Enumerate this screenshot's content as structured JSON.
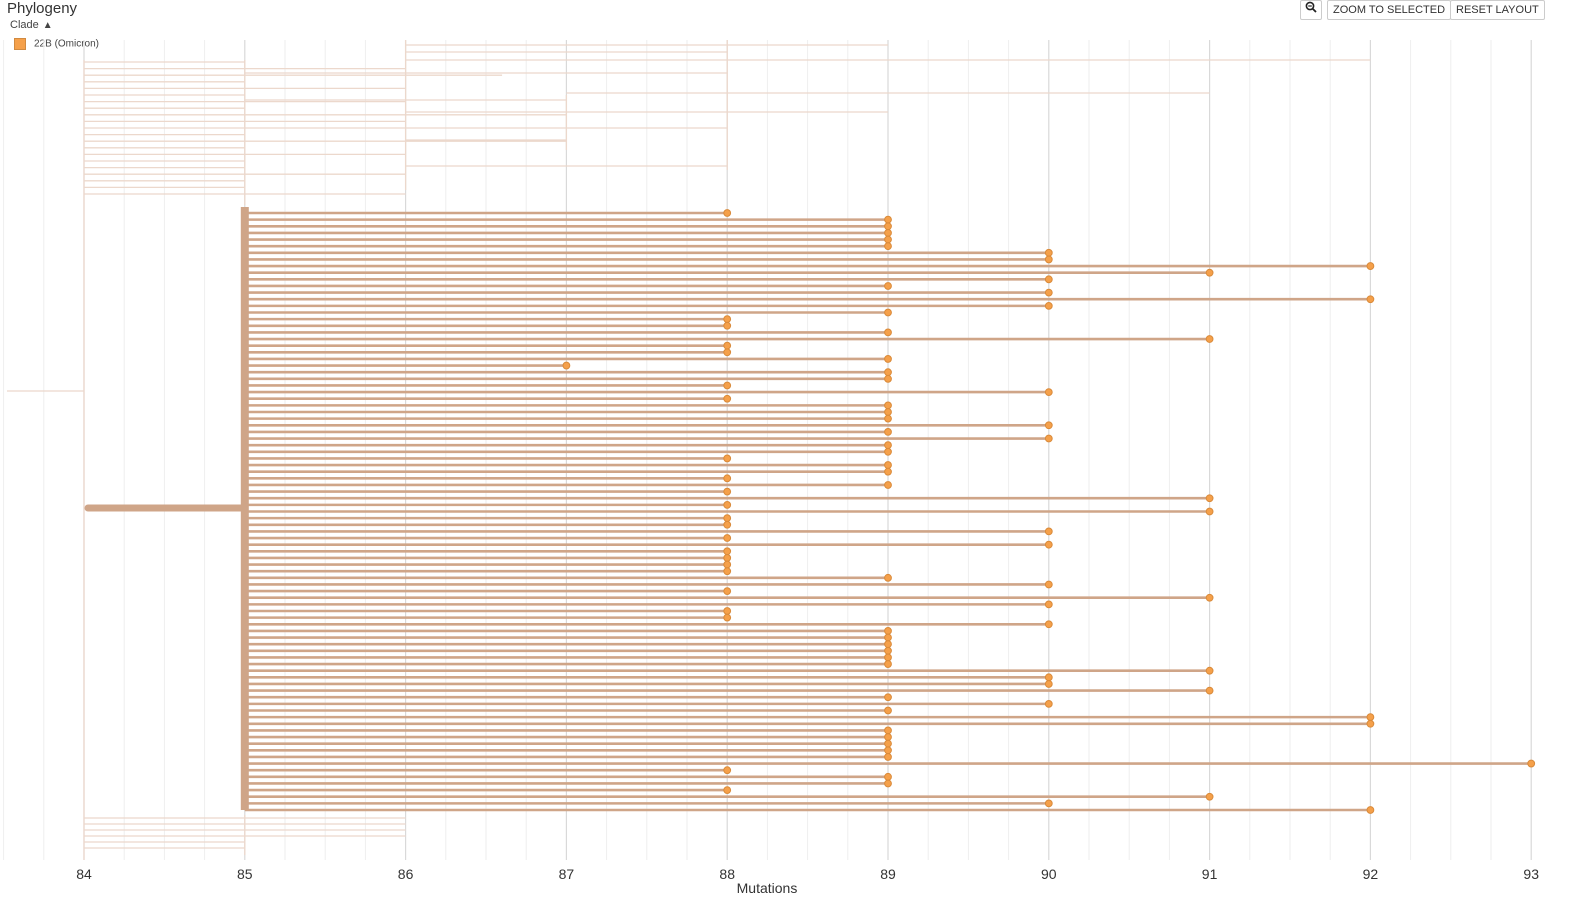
{
  "header": {
    "title": "Phylogeny"
  },
  "legend": {
    "toggle_label": "Clade",
    "entries": [
      {
        "label": "22B (Omicron)",
        "color": "#f5a04a"
      }
    ]
  },
  "toolbar": {
    "zoom_icon": "magnifier-minus-icon",
    "zoom_selected_label": "ZOOM TO SELECTED",
    "reset_label": "RESET LAYOUT"
  },
  "colors": {
    "branch": "#cfa588",
    "branch_faded": "#ecd8cc",
    "tip_fill": "#f5a04a",
    "tip_stroke": "#d98a3a",
    "grid_major": "#d9d9d9",
    "grid_minor": "#eeeeee"
  },
  "chart_data": {
    "type": "scatter",
    "title": "",
    "xlabel": "Mutations",
    "ylabel": "",
    "xlim": [
      84,
      93
    ],
    "x_ticks": [
      "84",
      "85",
      "86",
      "87",
      "88",
      "89",
      "90",
      "91",
      "92",
      "93"
    ],
    "grid": true,
    "root_mutations": 84,
    "clade_node_mutations": 85,
    "series": [
      {
        "name": "22B (Omicron)",
        "tip_mutations": [
          88,
          89,
          89,
          89,
          89,
          89,
          90,
          90,
          92,
          91,
          90,
          89,
          90,
          92,
          90,
          89,
          88,
          88,
          89,
          91,
          88,
          88,
          89,
          87,
          89,
          89,
          88,
          90,
          88,
          89,
          89,
          89,
          90,
          89,
          90,
          89,
          89,
          88,
          89,
          89,
          88,
          89,
          88,
          91,
          88,
          91,
          88,
          88,
          90,
          88,
          90,
          88,
          88,
          88,
          88,
          89,
          90,
          88,
          91,
          90,
          88,
          88,
          90,
          89,
          89,
          89,
          89,
          89,
          89,
          91,
          90,
          90,
          91,
          89,
          90,
          89,
          92,
          92,
          89,
          89,
          89,
          89,
          89,
          93,
          88,
          89,
          89,
          88,
          91,
          90,
          92
        ]
      }
    ]
  }
}
